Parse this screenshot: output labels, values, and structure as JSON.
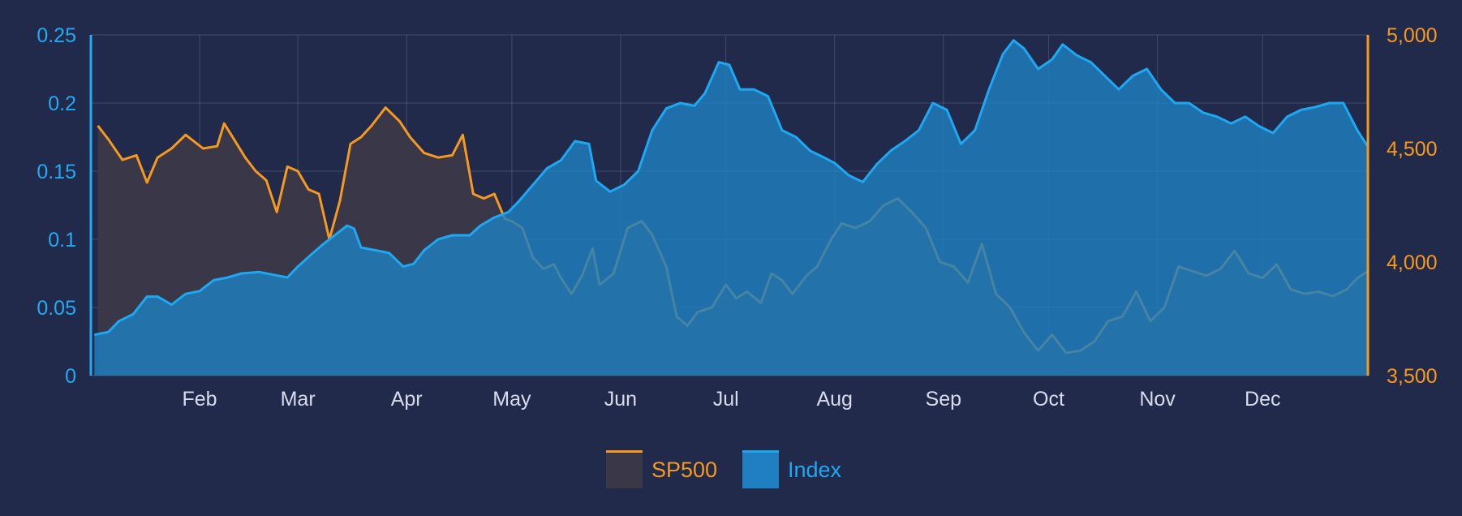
{
  "chart_data": {
    "type": "area",
    "title": "",
    "grid": true,
    "legend_position": "bottom-center",
    "x": {
      "range": [
        "2023-01-01",
        "2023-12-31"
      ],
      "tick_labels": [
        "Feb",
        "Mar",
        "Apr",
        "May",
        "Jun",
        "Jul",
        "Aug",
        "Sep",
        "Oct",
        "Nov",
        "Dec"
      ],
      "tick_dates": [
        "2023-02-01",
        "2023-03-01",
        "2023-04-01",
        "2023-05-01",
        "2023-06-01",
        "2023-07-01",
        "2023-08-01",
        "2023-09-01",
        "2023-10-01",
        "2023-11-01",
        "2023-12-01"
      ]
    },
    "y_left": {
      "range": [
        0,
        0.25
      ],
      "tick_values": [
        0,
        0.05,
        0.1,
        0.15,
        0.2,
        0.25
      ],
      "tick_labels": [
        "0",
        "0.05",
        "0.1",
        "0.15",
        "0.2",
        "0.25"
      ],
      "color": "#22aaf4"
    },
    "y_right": {
      "range": [
        3500,
        5000
      ],
      "tick_values": [
        3500,
        4000,
        4500,
        5000
      ],
      "tick_labels": [
        "3,500",
        "4,000",
        "4,500",
        "5,000"
      ],
      "color": "#f59a1e"
    },
    "series": [
      {
        "name": "SP500",
        "axis": "right",
        "color": "#f59a1e",
        "fill": "#3a3848",
        "points": [
          [
            "2023-01-03",
            4600
          ],
          [
            "2023-01-06",
            4540
          ],
          [
            "2023-01-10",
            4450
          ],
          [
            "2023-01-14",
            4470
          ],
          [
            "2023-01-17",
            4350
          ],
          [
            "2023-01-20",
            4460
          ],
          [
            "2023-01-24",
            4500
          ],
          [
            "2023-01-28",
            4560
          ],
          [
            "2023-02-02",
            4500
          ],
          [
            "2023-02-06",
            4510
          ],
          [
            "2023-02-08",
            4610
          ],
          [
            "2023-02-10",
            4560
          ],
          [
            "2023-02-14",
            4460
          ],
          [
            "2023-02-17",
            4400
          ],
          [
            "2023-02-20",
            4360
          ],
          [
            "2023-02-23",
            4220
          ],
          [
            "2023-02-26",
            4420
          ],
          [
            "2023-03-01",
            4400
          ],
          [
            "2023-03-04",
            4320
          ],
          [
            "2023-03-07",
            4300
          ],
          [
            "2023-03-10",
            4100
          ],
          [
            "2023-03-13",
            4270
          ],
          [
            "2023-03-16",
            4520
          ],
          [
            "2023-03-19",
            4550
          ],
          [
            "2023-03-22",
            4600
          ],
          [
            "2023-03-26",
            4680
          ],
          [
            "2023-03-30",
            4620
          ],
          [
            "2023-04-02",
            4550
          ],
          [
            "2023-04-06",
            4480
          ],
          [
            "2023-04-10",
            4460
          ],
          [
            "2023-04-14",
            4470
          ],
          [
            "2023-04-17",
            4560
          ],
          [
            "2023-04-20",
            4300
          ],
          [
            "2023-04-23",
            4280
          ],
          [
            "2023-04-26",
            4300
          ],
          [
            "2023-04-29",
            4190
          ],
          [
            "2023-05-01",
            4180
          ],
          [
            "2023-05-04",
            4150
          ],
          [
            "2023-05-07",
            4020
          ],
          [
            "2023-05-10",
            3970
          ],
          [
            "2023-05-13",
            3990
          ],
          [
            "2023-05-15",
            3930
          ],
          [
            "2023-05-18",
            3860
          ],
          [
            "2023-05-21",
            3940
          ],
          [
            "2023-05-24",
            4060
          ],
          [
            "2023-05-26",
            3900
          ],
          [
            "2023-05-30",
            3950
          ],
          [
            "2023-06-03",
            4150
          ],
          [
            "2023-06-07",
            4180
          ],
          [
            "2023-06-10",
            4120
          ],
          [
            "2023-06-14",
            3980
          ],
          [
            "2023-06-17",
            3760
          ],
          [
            "2023-06-20",
            3720
          ],
          [
            "2023-06-23",
            3780
          ],
          [
            "2023-06-27",
            3800
          ],
          [
            "2023-07-01",
            3900
          ],
          [
            "2023-07-04",
            3840
          ],
          [
            "2023-07-07",
            3870
          ],
          [
            "2023-07-11",
            3820
          ],
          [
            "2023-07-14",
            3950
          ],
          [
            "2023-07-17",
            3920
          ],
          [
            "2023-07-20",
            3860
          ],
          [
            "2023-07-24",
            3940
          ],
          [
            "2023-07-27",
            3980
          ],
          [
            "2023-07-31",
            4100
          ],
          [
            "2023-08-03",
            4170
          ],
          [
            "2023-08-07",
            4150
          ],
          [
            "2023-08-11",
            4180
          ],
          [
            "2023-08-15",
            4250
          ],
          [
            "2023-08-19",
            4280
          ],
          [
            "2023-08-23",
            4220
          ],
          [
            "2023-08-27",
            4150
          ],
          [
            "2023-08-31",
            4000
          ],
          [
            "2023-09-04",
            3980
          ],
          [
            "2023-09-08",
            3910
          ],
          [
            "2023-09-12",
            4080
          ],
          [
            "2023-09-16",
            3860
          ],
          [
            "2023-09-20",
            3800
          ],
          [
            "2023-09-24",
            3690
          ],
          [
            "2023-09-28",
            3610
          ],
          [
            "2023-10-02",
            3680
          ],
          [
            "2023-10-06",
            3600
          ],
          [
            "2023-10-10",
            3610
          ],
          [
            "2023-10-14",
            3650
          ],
          [
            "2023-10-18",
            3740
          ],
          [
            "2023-10-22",
            3760
          ],
          [
            "2023-10-26",
            3870
          ],
          [
            "2023-10-30",
            3740
          ],
          [
            "2023-11-03",
            3800
          ],
          [
            "2023-11-07",
            3980
          ],
          [
            "2023-11-11",
            3960
          ],
          [
            "2023-11-15",
            3940
          ],
          [
            "2023-11-19",
            3970
          ],
          [
            "2023-11-23",
            4050
          ],
          [
            "2023-11-27",
            3950
          ],
          [
            "2023-12-01",
            3930
          ],
          [
            "2023-12-05",
            3990
          ],
          [
            "2023-12-09",
            3880
          ],
          [
            "2023-12-13",
            3860
          ],
          [
            "2023-12-17",
            3870
          ],
          [
            "2023-12-21",
            3850
          ],
          [
            "2023-12-25",
            3880
          ],
          [
            "2023-12-28",
            3930
          ],
          [
            "2023-12-31",
            3960
          ]
        ]
      },
      {
        "name": "Index",
        "axis": "left",
        "color": "#1ea8f2",
        "fill": "#1f7fc0",
        "points": [
          [
            "2023-01-02",
            0.03
          ],
          [
            "2023-01-06",
            0.032
          ],
          [
            "2023-01-09",
            0.04
          ],
          [
            "2023-01-13",
            0.045
          ],
          [
            "2023-01-17",
            0.058
          ],
          [
            "2023-01-20",
            0.058
          ],
          [
            "2023-01-24",
            0.052
          ],
          [
            "2023-01-28",
            0.06
          ],
          [
            "2023-02-01",
            0.062
          ],
          [
            "2023-02-05",
            0.07
          ],
          [
            "2023-02-09",
            0.072
          ],
          [
            "2023-02-13",
            0.075
          ],
          [
            "2023-02-18",
            0.076
          ],
          [
            "2023-02-22",
            0.074
          ],
          [
            "2023-02-26",
            0.072
          ],
          [
            "2023-03-01",
            0.08
          ],
          [
            "2023-03-04",
            0.087
          ],
          [
            "2023-03-08",
            0.096
          ],
          [
            "2023-03-12",
            0.104
          ],
          [
            "2023-03-15",
            0.11
          ],
          [
            "2023-03-17",
            0.108
          ],
          [
            "2023-03-19",
            0.094
          ],
          [
            "2023-03-23",
            0.092
          ],
          [
            "2023-03-27",
            0.09
          ],
          [
            "2023-03-31",
            0.08
          ],
          [
            "2023-04-03",
            0.082
          ],
          [
            "2023-04-06",
            0.092
          ],
          [
            "2023-04-10",
            0.1
          ],
          [
            "2023-04-14",
            0.103
          ],
          [
            "2023-04-19",
            0.103
          ],
          [
            "2023-04-22",
            0.11
          ],
          [
            "2023-04-26",
            0.116
          ],
          [
            "2023-04-30",
            0.12
          ],
          [
            "2023-05-03",
            0.128
          ],
          [
            "2023-05-07",
            0.14
          ],
          [
            "2023-05-11",
            0.152
          ],
          [
            "2023-05-15",
            0.158
          ],
          [
            "2023-05-19",
            0.172
          ],
          [
            "2023-05-23",
            0.17
          ],
          [
            "2023-05-25",
            0.143
          ],
          [
            "2023-05-29",
            0.135
          ],
          [
            "2023-06-02",
            0.14
          ],
          [
            "2023-06-06",
            0.15
          ],
          [
            "2023-06-10",
            0.18
          ],
          [
            "2023-06-14",
            0.196
          ],
          [
            "2023-06-18",
            0.2
          ],
          [
            "2023-06-22",
            0.198
          ],
          [
            "2023-06-25",
            0.207
          ],
          [
            "2023-06-29",
            0.23
          ],
          [
            "2023-07-02",
            0.228
          ],
          [
            "2023-07-05",
            0.21
          ],
          [
            "2023-07-09",
            0.21
          ],
          [
            "2023-07-13",
            0.205
          ],
          [
            "2023-07-17",
            0.18
          ],
          [
            "2023-07-21",
            0.175
          ],
          [
            "2023-07-25",
            0.165
          ],
          [
            "2023-07-29",
            0.16
          ],
          [
            "2023-08-01",
            0.156
          ],
          [
            "2023-08-05",
            0.147
          ],
          [
            "2023-08-09",
            0.142
          ],
          [
            "2023-08-13",
            0.155
          ],
          [
            "2023-08-17",
            0.165
          ],
          [
            "2023-08-21",
            0.172
          ],
          [
            "2023-08-25",
            0.18
          ],
          [
            "2023-08-29",
            0.2
          ],
          [
            "2023-09-02",
            0.195
          ],
          [
            "2023-09-06",
            0.17
          ],
          [
            "2023-09-10",
            0.18
          ],
          [
            "2023-09-14",
            0.21
          ],
          [
            "2023-09-18",
            0.236
          ],
          [
            "2023-09-21",
            0.246
          ],
          [
            "2023-09-24",
            0.24
          ],
          [
            "2023-09-28",
            0.225
          ],
          [
            "2023-10-02",
            0.232
          ],
          [
            "2023-10-05",
            0.243
          ],
          [
            "2023-10-09",
            0.235
          ],
          [
            "2023-10-13",
            0.23
          ],
          [
            "2023-10-17",
            0.22
          ],
          [
            "2023-10-21",
            0.21
          ],
          [
            "2023-10-25",
            0.22
          ],
          [
            "2023-10-29",
            0.225
          ],
          [
            "2023-11-02",
            0.21
          ],
          [
            "2023-11-06",
            0.2
          ],
          [
            "2023-11-10",
            0.2
          ],
          [
            "2023-11-14",
            0.193
          ],
          [
            "2023-11-18",
            0.19
          ],
          [
            "2023-11-22",
            0.185
          ],
          [
            "2023-11-26",
            0.19
          ],
          [
            "2023-11-30",
            0.183
          ],
          [
            "2023-12-04",
            0.178
          ],
          [
            "2023-12-08",
            0.19
          ],
          [
            "2023-12-12",
            0.195
          ],
          [
            "2023-12-16",
            0.197
          ],
          [
            "2023-12-20",
            0.2
          ],
          [
            "2023-12-24",
            0.2
          ],
          [
            "2023-12-28",
            0.18
          ],
          [
            "2023-12-31",
            0.168
          ]
        ]
      }
    ]
  }
}
